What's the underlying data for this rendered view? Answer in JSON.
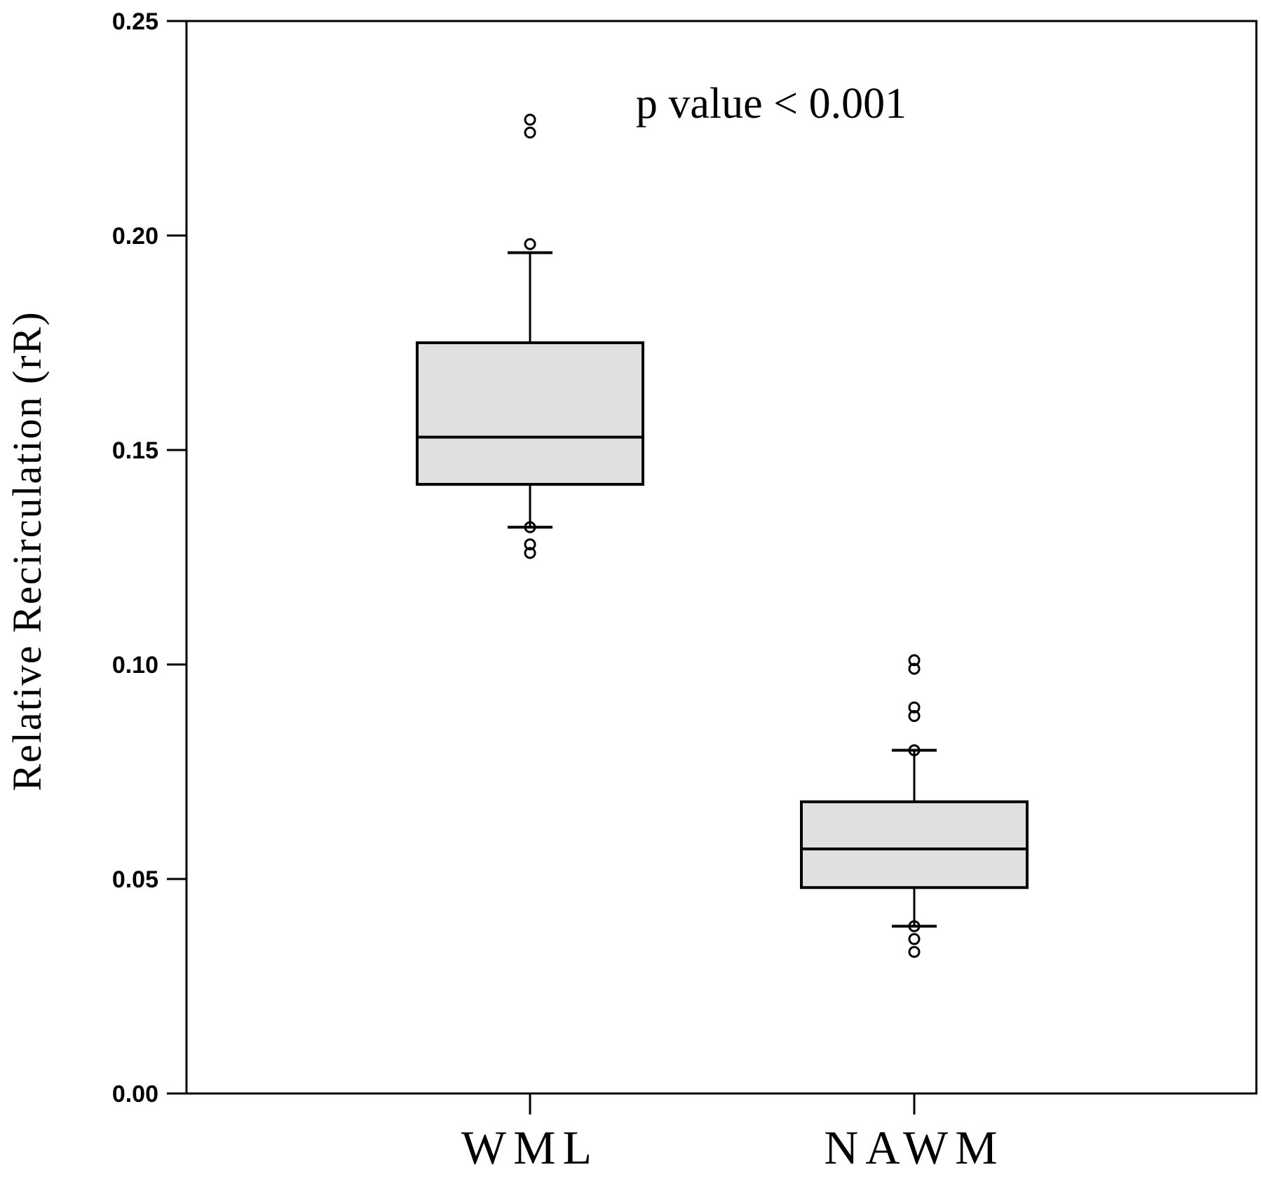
{
  "chart_data": {
    "type": "box",
    "ylabel": "Relative Recirculation (rR)",
    "ylim": [
      0,
      0.25
    ],
    "yticks": [
      0.0,
      0.05,
      0.1,
      0.15,
      0.2,
      0.25
    ],
    "ytick_labels": [
      "0.00",
      "0.05",
      "0.10",
      "0.15",
      "0.20",
      "0.25"
    ],
    "categories": [
      "WML",
      "NAWM"
    ],
    "boxes": [
      {
        "category": "WML",
        "whisker_low": 0.132,
        "q1": 0.142,
        "median": 0.153,
        "q3": 0.175,
        "whisker_high": 0.196,
        "outliers": [
          0.227,
          0.224,
          0.198,
          0.132,
          0.128,
          0.126
        ]
      },
      {
        "category": "NAWM",
        "whisker_low": 0.039,
        "q1": 0.048,
        "median": 0.057,
        "q3": 0.068,
        "whisker_high": 0.08,
        "outliers": [
          0.101,
          0.099,
          0.09,
          0.088,
          0.08,
          0.039,
          0.036,
          0.033
        ]
      }
    ],
    "annotation": "p value < 0.001",
    "colors": {
      "box_fill": "#e0e0e0",
      "stroke": "#000000"
    }
  }
}
